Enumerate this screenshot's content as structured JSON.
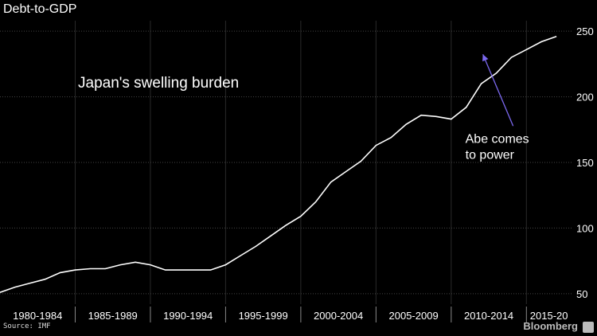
{
  "header": {
    "title": "Debt-to-GDP"
  },
  "footer": {
    "source": "Source: IMF",
    "brand": "Bloomberg"
  },
  "chart_data": {
    "type": "line",
    "title": "Japan's swelling burden",
    "xlabel": "",
    "ylabel": "",
    "x_tick_labels": [
      "1980-1984",
      "1985-1989",
      "1990-1994",
      "1995-1999",
      "2000-2004",
      "2005-2009",
      "2010-2014",
      "2015-20"
    ],
    "y_ticks": [
      50,
      100,
      150,
      200,
      250
    ],
    "xlim": [
      1980,
      2018
    ],
    "ylim": [
      42,
      258
    ],
    "grid": true,
    "colors": {
      "background": "#000000",
      "line": "#ffffff",
      "arrow": "#7b68ee",
      "grid": "#444444"
    },
    "series": [
      {
        "x": [
          1980,
          1981,
          1982,
          1983,
          1984,
          1985,
          1986,
          1987,
          1988,
          1989,
          1990,
          1991,
          1992,
          1993,
          1994,
          1995,
          1996,
          1997,
          1998,
          1999,
          2000,
          2001,
          2002,
          2003,
          2004,
          2005,
          2006,
          2007,
          2008,
          2009,
          2010,
          2011,
          2012,
          2013,
          2014,
          2015,
          2016,
          2017
        ],
        "values": [
          51,
          55,
          58,
          61,
          66,
          68,
          69,
          69,
          72,
          74,
          72,
          68,
          68,
          68,
          68,
          72,
          79,
          86,
          94,
          102,
          109,
          120,
          135,
          143,
          151,
          163,
          169,
          179,
          186,
          185,
          183,
          192,
          210,
          218,
          230,
          236,
          242,
          246
        ]
      }
    ],
    "annotations": [
      {
        "text_lines": [
          "Abe comes",
          "to power"
        ],
        "x": 2012,
        "y": 236
      }
    ]
  }
}
